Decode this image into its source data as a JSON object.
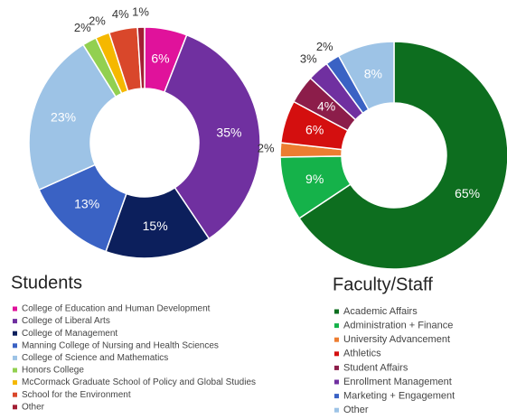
{
  "chart_data": [
    {
      "type": "donut",
      "title": "Students",
      "categories": [
        "College of Education and Human Development",
        "College of Liberal Arts",
        "College of Management",
        "Manning College of Nursing and Health Sciences",
        "College of Science and Mathematics",
        "Honors College",
        "McCormack Graduate School of Policy and Global Studies",
        "School for the Environment",
        "Other"
      ],
      "values": [
        6,
        35,
        15,
        13,
        23,
        2,
        2,
        4,
        1
      ],
      "value_labels": [
        "6%",
        "35%",
        "15%",
        "13%",
        "23%",
        "2%",
        "2%",
        "4%",
        "1%"
      ],
      "colors": [
        "#e0129b",
        "#7030a0",
        "#0c1f5c",
        "#3a62c4",
        "#9dc3e6",
        "#92d050",
        "#f5b800",
        "#d9472b",
        "#a31f34"
      ]
    },
    {
      "type": "donut",
      "title": "Faculty/Staff",
      "categories": [
        "Academic Affairs",
        "Administration + Finance",
        "University Advancement",
        "Athletics",
        "Student Affairs",
        "Enrollment Management",
        "Marketing + Engagement",
        "Other"
      ],
      "values": [
        65,
        9,
        2,
        6,
        4,
        3,
        2,
        8
      ],
      "value_labels": [
        "65%",
        "9%",
        "2%",
        "6%",
        "4%",
        "3%",
        "2%",
        "8%"
      ],
      "colors": [
        "#0d6e1f",
        "#15b24a",
        "#ed7d31",
        "#d40f0f",
        "#8c1d4a",
        "#7030a0",
        "#3a62c4",
        "#9dc3e6"
      ]
    }
  ]
}
